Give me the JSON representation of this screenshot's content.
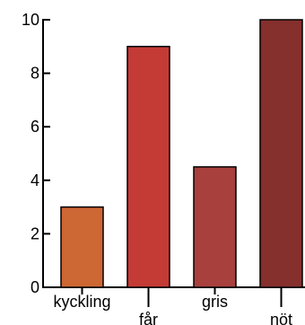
{
  "chart_data": {
    "type": "bar",
    "categories": [
      "kyckling",
      "får",
      "gris",
      "nöt"
    ],
    "values": [
      3,
      9,
      4.5,
      10
    ],
    "ylim": [
      0,
      10
    ],
    "yticks": [
      0,
      2,
      4,
      6,
      8,
      10
    ],
    "grid": false,
    "legend": "none",
    "colors": [
      "#cd6734",
      "#c43a35",
      "#a8403d",
      "#85302c"
    ],
    "edge_color": "#000000"
  }
}
